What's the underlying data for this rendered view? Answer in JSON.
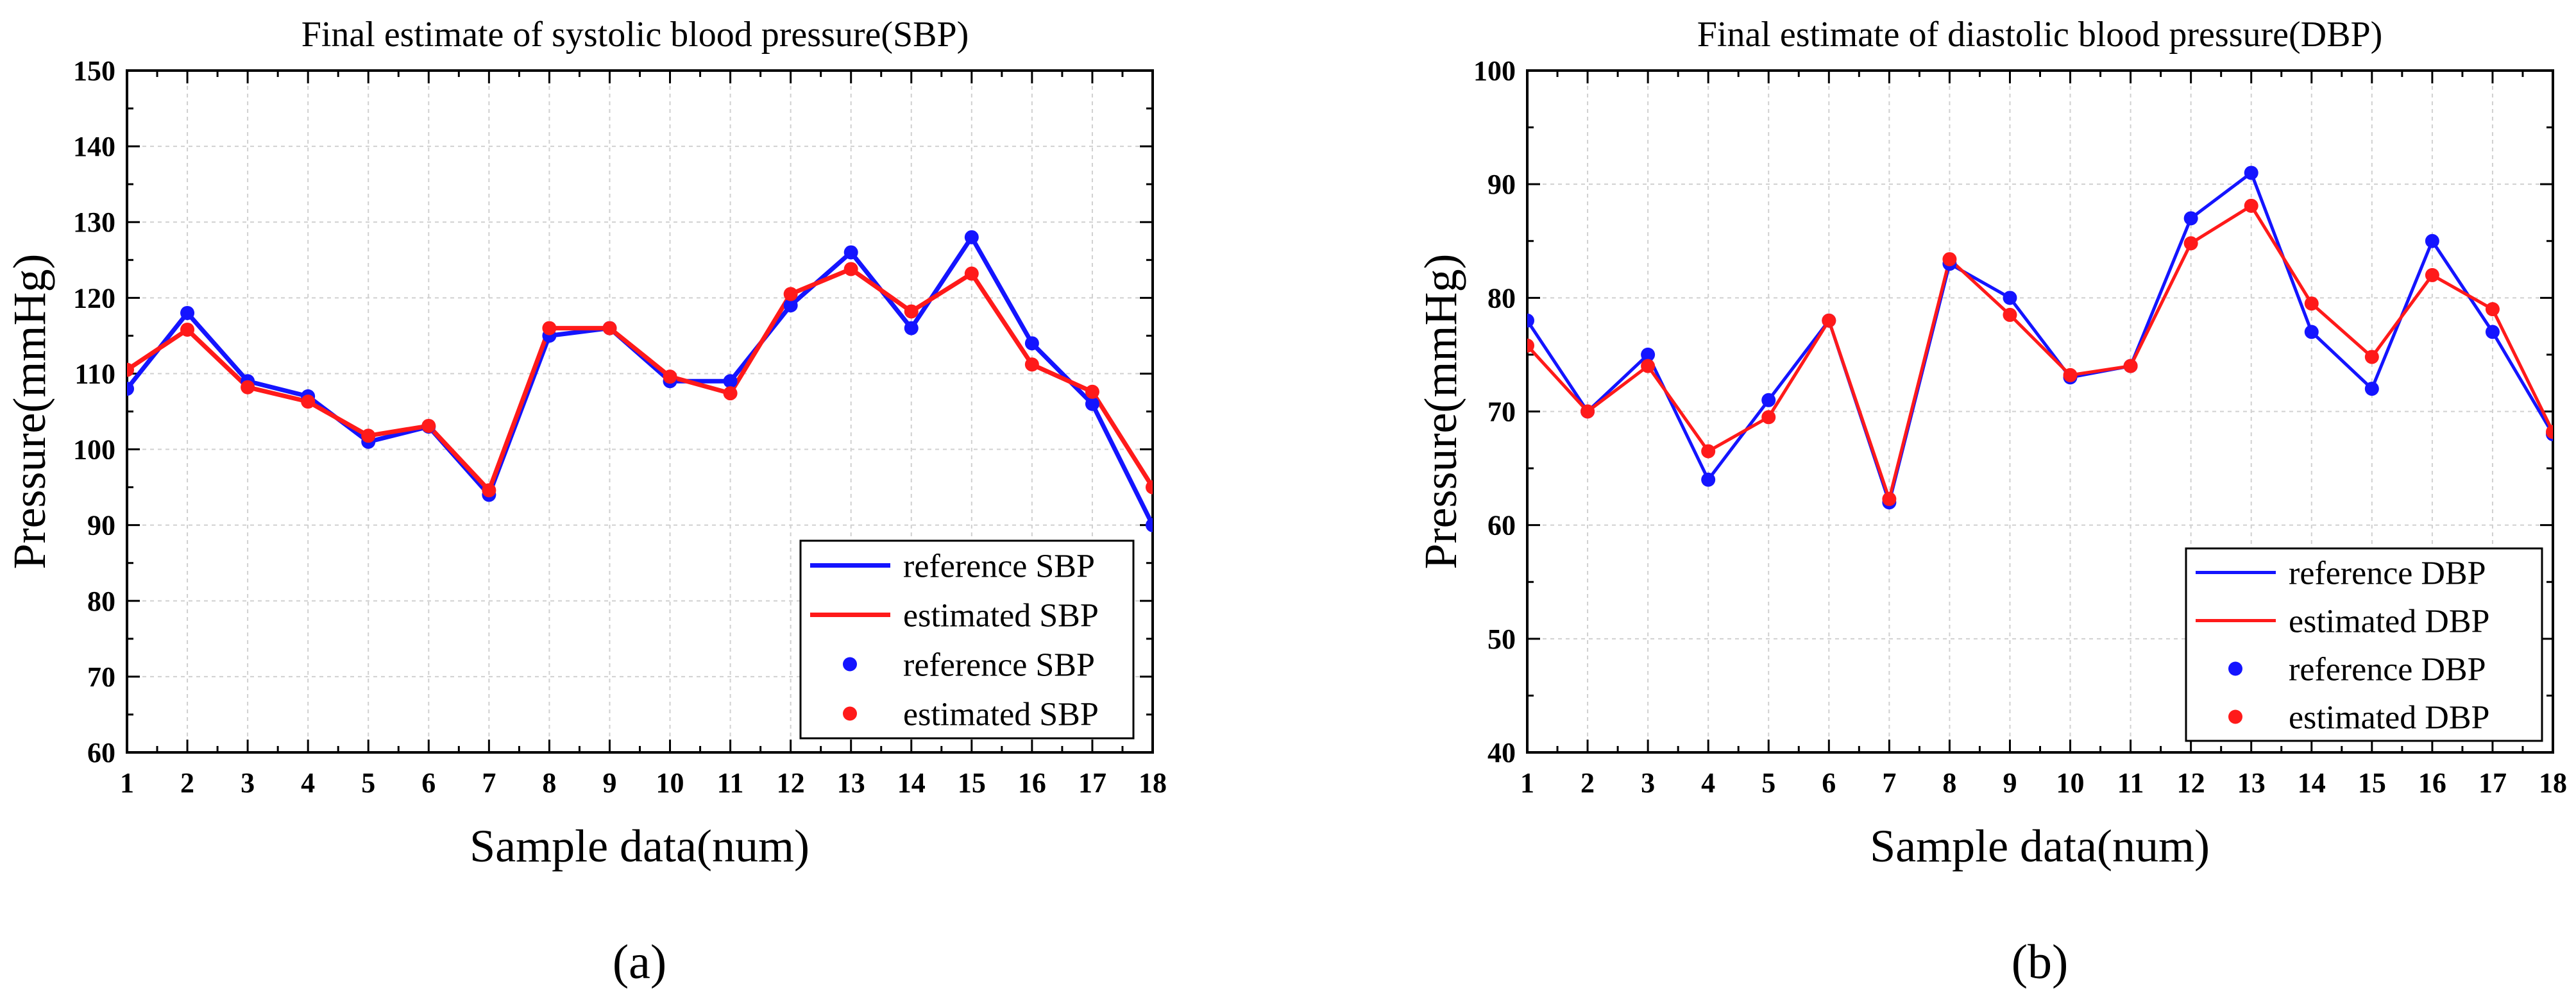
{
  "chart_data": [
    {
      "type": "line",
      "title": "Final estimate of systolic blood pressure(SBP)",
      "xlabel": "Sample data(num)",
      "ylabel": "Pressure(mmHg)",
      "panel_label": "(a)",
      "x": [
        1,
        2,
        3,
        4,
        5,
        6,
        7,
        8,
        9,
        10,
        11,
        12,
        13,
        14,
        15,
        16,
        17,
        18
      ],
      "xlim": [
        1,
        18
      ],
      "ylim": [
        60,
        150
      ],
      "yticks": [
        60,
        70,
        80,
        90,
        100,
        110,
        120,
        130,
        140,
        150
      ],
      "grid": true,
      "legend_position": "bottom-right",
      "series": [
        {
          "name": "reference SBP",
          "kind": "line",
          "color": "#1414ff",
          "values": [
            108,
            118,
            109,
            107,
            101,
            103,
            94,
            115,
            116,
            109,
            109,
            119,
            126,
            116,
            128,
            114,
            106,
            90
          ]
        },
        {
          "name": "estimated SBP",
          "kind": "line",
          "color": "#ff1a1a",
          "values": [
            110.5,
            115.8,
            108.2,
            106.3,
            101.8,
            103.1,
            94.6,
            116,
            116,
            109.6,
            107.4,
            120.5,
            123.8,
            118.2,
            123.2,
            111.2,
            107.6,
            95
          ]
        },
        {
          "name": "reference SBP",
          "kind": "scatter",
          "color": "#1414ff",
          "values": [
            108,
            118,
            109,
            107,
            101,
            103,
            94,
            115,
            116,
            109,
            109,
            119,
            126,
            116,
            128,
            114,
            106,
            90
          ]
        },
        {
          "name": "estimated SBP",
          "kind": "scatter",
          "color": "#ff1a1a",
          "values": [
            110.5,
            115.8,
            108.2,
            106.3,
            101.8,
            103.1,
            94.6,
            116,
            116,
            109.6,
            107.4,
            120.5,
            123.8,
            118.2,
            123.2,
            111.2,
            107.6,
            95
          ]
        }
      ]
    },
    {
      "type": "line",
      "title": "Final estimate of diastolic blood pressure(DBP)",
      "xlabel": "Sample data(num)",
      "ylabel": "Pressure(mmHg)",
      "panel_label": "(b)",
      "x": [
        1,
        2,
        3,
        4,
        5,
        6,
        7,
        8,
        9,
        10,
        11,
        12,
        13,
        14,
        15,
        16,
        17,
        18
      ],
      "xlim": [
        1,
        18
      ],
      "ylim": [
        40,
        100
      ],
      "yticks": [
        40,
        50,
        60,
        70,
        80,
        90,
        100
      ],
      "grid": true,
      "legend_position": "bottom-right",
      "series": [
        {
          "name": "reference DBP",
          "kind": "line",
          "color": "#1414ff",
          "values": [
            78,
            70,
            75,
            64,
            71,
            78,
            62,
            83,
            80,
            73,
            74,
            87,
            91,
            77,
            72,
            85,
            77,
            68
          ]
        },
        {
          "name": "estimated DBP",
          "kind": "line",
          "color": "#ff1a1a",
          "values": [
            75.8,
            70,
            74,
            66.5,
            69.5,
            78,
            62.3,
            83.4,
            78.5,
            73.2,
            74,
            84.8,
            88.1,
            79.5,
            74.8,
            82,
            79,
            68.2
          ]
        },
        {
          "name": "reference DBP",
          "kind": "scatter",
          "color": "#1414ff",
          "values": [
            78,
            70,
            75,
            64,
            71,
            78,
            62,
            83,
            80,
            73,
            74,
            87,
            91,
            77,
            72,
            85,
            77,
            68
          ]
        },
        {
          "name": "estimated DBP",
          "kind": "scatter",
          "color": "#ff1a1a",
          "values": [
            75.8,
            70,
            74,
            66.5,
            69.5,
            78,
            62.3,
            83.4,
            78.5,
            73.2,
            74,
            84.8,
            88.1,
            79.5,
            74.8,
            82,
            79,
            68.2
          ]
        }
      ]
    }
  ]
}
